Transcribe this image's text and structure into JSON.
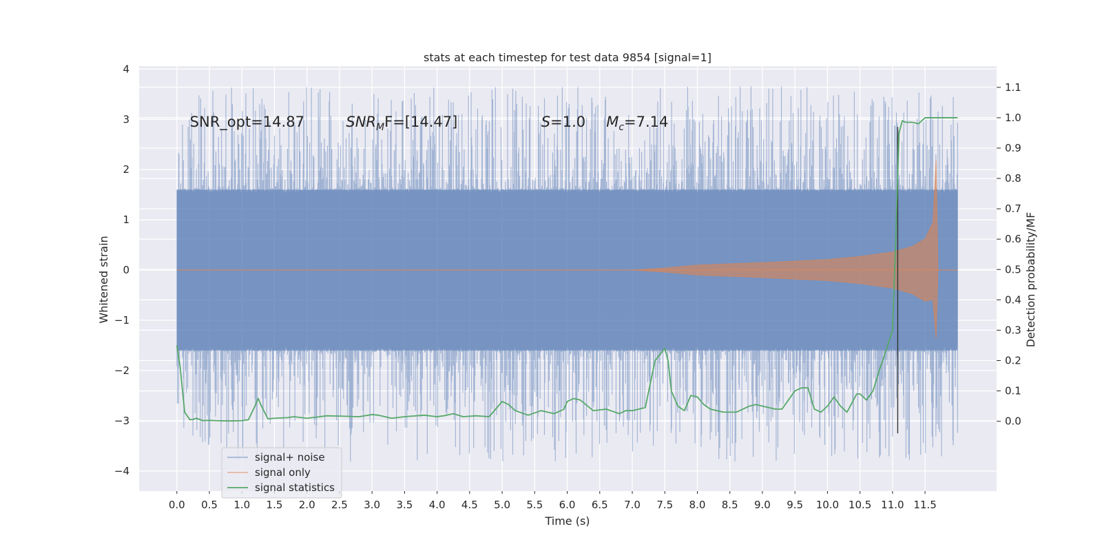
{
  "chart_data": {
    "type": "line",
    "title": "stats at each timestep for test data 9854 [signal=1]",
    "xlabel": "Time (s)",
    "ylabel": "Whitened strain",
    "y2label": "Detection probability/MF",
    "xlim": [
      -0.58,
      12.6
    ],
    "ylim": [
      -4.4,
      4.06
    ],
    "y2lim": [
      -0.23,
      1.17
    ],
    "xticks": [
      0.0,
      0.5,
      1.0,
      1.5,
      2.0,
      2.5,
      3.0,
      3.5,
      4.0,
      4.5,
      5.0,
      5.5,
      6.0,
      6.5,
      7.0,
      7.5,
      8.0,
      8.5,
      9.0,
      9.5,
      10.0,
      10.5,
      11.0,
      11.5
    ],
    "xtick_labels": [
      "0.0",
      "0.5",
      "1.0",
      "1.5",
      "2.0",
      "2.5",
      "3.0",
      "3.5",
      "4.0",
      "4.5",
      "5.0",
      "5.5",
      "6.0",
      "6.5",
      "7.0",
      "7.5",
      "8.0",
      "8.5",
      "9.0",
      "9.5",
      "10.0",
      "10.5",
      "11.0",
      "11.5"
    ],
    "yticks": [
      -4,
      -3,
      -2,
      -1,
      0,
      1,
      2,
      3,
      4
    ],
    "ytick_labels": [
      "−4",
      "−3",
      "−2",
      "−1",
      "0",
      "1",
      "2",
      "3",
      "4"
    ],
    "y2ticks": [
      0.0,
      0.1,
      0.2,
      0.3,
      0.4,
      0.5,
      0.6,
      0.7,
      0.8,
      0.9,
      1.0,
      1.1
    ],
    "y2tick_labels": [
      "0.0",
      "0.1",
      "0.2",
      "0.3",
      "0.4",
      "0.5",
      "0.6",
      "0.7",
      "0.8",
      "0.9",
      "1.0",
      "1.1"
    ],
    "grid": true,
    "legend_position": "lower-left",
    "annotations": [
      {
        "text": "SNR_opt=14.87",
        "x": 0.2,
        "y": 2.95
      },
      {
        "text": "SNR",
        "sub": "M",
        "rest": "F=[14.47]",
        "italic_lead": true,
        "x": 2.6,
        "y": 2.95
      },
      {
        "text": "S",
        "rest": "=1.0",
        "italic_lead": true,
        "x": 5.6,
        "y": 2.95
      },
      {
        "text": "M",
        "sub": "c",
        "rest": "=7.14",
        "italic_lead": true,
        "x": 6.6,
        "y": 2.95
      }
    ],
    "vline": {
      "x": 11.08,
      "ymin": -3.25,
      "ymax": 2.85
    },
    "series": [
      {
        "name": "signal+ noise",
        "color": "#4c72b0",
        "axis": "left",
        "kind": "noise",
        "t_start": 0.0,
        "t_end": 12.0,
        "core_amplitude": 1.6,
        "spike_max_positive": 3.66,
        "spike_min_negative": -3.82
      },
      {
        "name": "signal only",
        "color": "#dd8452",
        "axis": "left",
        "kind": "chirp",
        "t": [
          0.0,
          7.0,
          7.5,
          8.0,
          9.0,
          10.0,
          10.5,
          11.0,
          11.3,
          11.5,
          11.62,
          11.67,
          11.7,
          12.0
        ],
        "envelope": [
          0.0,
          0.0,
          0.04,
          0.1,
          0.15,
          0.21,
          0.27,
          0.36,
          0.47,
          0.62,
          0.95,
          2.2,
          0.0,
          0.0
        ]
      },
      {
        "name": "signal statistics",
        "color": "#55a868",
        "axis": "right",
        "t": [
          0.0,
          0.05,
          0.12,
          0.2,
          0.25,
          0.3,
          0.4,
          0.5,
          0.6,
          0.8,
          1.0,
          1.1,
          1.2,
          1.25,
          1.3,
          1.4,
          1.5,
          1.7,
          1.8,
          2.0,
          2.2,
          2.3,
          2.5,
          2.8,
          3.0,
          3.1,
          3.3,
          3.5,
          3.8,
          4.0,
          4.1,
          4.25,
          4.4,
          4.6,
          4.8,
          5.0,
          5.1,
          5.2,
          5.4,
          5.6,
          5.8,
          5.95,
          6.0,
          6.1,
          6.2,
          6.4,
          6.6,
          6.8,
          6.9,
          7.0,
          7.2,
          7.35,
          7.5,
          7.55,
          7.6,
          7.7,
          7.8,
          7.9,
          8.0,
          8.1,
          8.2,
          8.4,
          8.6,
          8.8,
          8.9,
          9.0,
          9.2,
          9.3,
          9.5,
          9.6,
          9.7,
          9.8,
          9.9,
          10.0,
          10.1,
          10.2,
          10.3,
          10.45,
          10.5,
          10.6,
          10.7,
          10.8,
          10.85,
          11.0,
          11.05,
          11.1,
          11.15,
          11.2,
          11.3,
          11.4,
          11.5,
          11.7,
          11.9,
          12.0
        ],
        "values": [
          0.25,
          0.18,
          0.03,
          0.005,
          0.006,
          0.01,
          0.002,
          0.003,
          0.002,
          0.001,
          0.002,
          0.005,
          0.05,
          0.075,
          0.05,
          0.008,
          0.01,
          0.012,
          0.015,
          0.01,
          0.015,
          0.018,
          0.017,
          0.015,
          0.022,
          0.02,
          0.01,
          0.015,
          0.02,
          0.015,
          0.018,
          0.025,
          0.015,
          0.018,
          0.015,
          0.065,
          0.055,
          0.035,
          0.02,
          0.035,
          0.025,
          0.04,
          0.065,
          0.075,
          0.07,
          0.035,
          0.04,
          0.025,
          0.035,
          0.035,
          0.045,
          0.2,
          0.24,
          0.2,
          0.1,
          0.05,
          0.035,
          0.085,
          0.08,
          0.055,
          0.04,
          0.03,
          0.03,
          0.05,
          0.055,
          0.05,
          0.04,
          0.04,
          0.1,
          0.11,
          0.11,
          0.04,
          0.03,
          0.05,
          0.08,
          0.05,
          0.03,
          0.09,
          0.09,
          0.07,
          0.1,
          0.17,
          0.2,
          0.3,
          0.6,
          0.95,
          0.99,
          0.985,
          0.985,
          0.98,
          1.0,
          1.0,
          1.0,
          1.0
        ]
      }
    ]
  }
}
